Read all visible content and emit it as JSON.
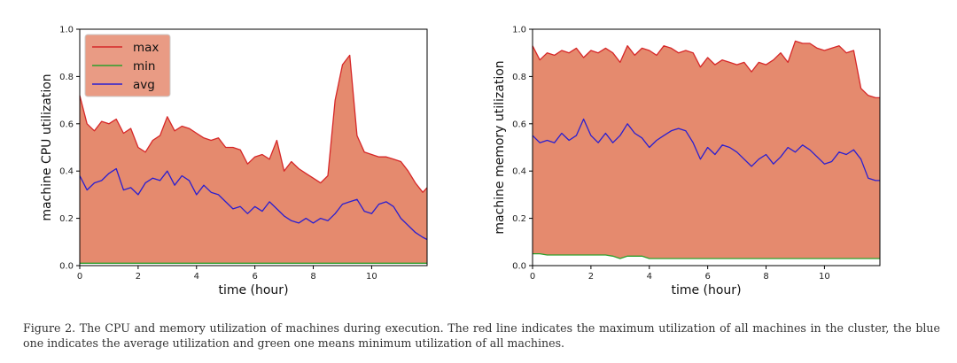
{
  "colors": {
    "max": "#d62728",
    "min": "#2ca02c",
    "avg": "#2a1fd0",
    "fill": "#e58a6e"
  },
  "caption": "Figure 2.   The CPU and memory utilization of machines during execution. The red line indicates the maximum utilization of all machines in the cluster, the blue one indicates the average utilization and green one means minimum utilization of all machines.",
  "chart_data": [
    {
      "type": "area",
      "title": "",
      "xlabel": "time (hour)",
      "ylabel": "machine CPU utilization",
      "xlim": [
        0,
        11.9
      ],
      "ylim": [
        0,
        1.0
      ],
      "xticks": [
        "0",
        "2",
        "4",
        "6",
        "8",
        "10"
      ],
      "yticks": [
        "0.0",
        "0.2",
        "0.4",
        "0.6",
        "0.8",
        "1.0"
      ],
      "legend": {
        "position": "top-left",
        "entries": [
          "max",
          "min",
          "avg"
        ]
      },
      "x": [
        0,
        0.25,
        0.5,
        0.75,
        1.0,
        1.25,
        1.5,
        1.75,
        2.0,
        2.25,
        2.5,
        2.75,
        3.0,
        3.25,
        3.5,
        3.75,
        4.0,
        4.25,
        4.5,
        4.75,
        5.0,
        5.25,
        5.5,
        5.75,
        6.0,
        6.25,
        6.5,
        6.75,
        7.0,
        7.25,
        7.5,
        7.75,
        8.0,
        8.25,
        8.5,
        8.75,
        9.0,
        9.25,
        9.5,
        9.75,
        10.0,
        10.25,
        10.5,
        10.75,
        11.0,
        11.25,
        11.5,
        11.75,
        11.9
      ],
      "series": [
        {
          "name": "max",
          "values": [
            0.72,
            0.6,
            0.57,
            0.61,
            0.6,
            0.62,
            0.56,
            0.58,
            0.5,
            0.48,
            0.53,
            0.55,
            0.63,
            0.57,
            0.59,
            0.58,
            0.56,
            0.54,
            0.53,
            0.54,
            0.5,
            0.5,
            0.49,
            0.43,
            0.46,
            0.47,
            0.45,
            0.53,
            0.4,
            0.44,
            0.41,
            0.39,
            0.37,
            0.35,
            0.38,
            0.7,
            0.85,
            0.89,
            0.55,
            0.48,
            0.47,
            0.46,
            0.46,
            0.45,
            0.44,
            0.4,
            0.35,
            0.31,
            0.33
          ]
        },
        {
          "name": "min",
          "values": [
            0.01,
            0.01,
            0.01,
            0.01,
            0.01,
            0.01,
            0.01,
            0.01,
            0.01,
            0.01,
            0.01,
            0.01,
            0.01,
            0.01,
            0.01,
            0.01,
            0.01,
            0.01,
            0.01,
            0.01,
            0.01,
            0.01,
            0.01,
            0.01,
            0.01,
            0.01,
            0.01,
            0.01,
            0.01,
            0.01,
            0.01,
            0.01,
            0.01,
            0.01,
            0.01,
            0.01,
            0.01,
            0.01,
            0.01,
            0.01,
            0.01,
            0.01,
            0.01,
            0.01,
            0.01,
            0.01,
            0.01,
            0.01,
            0.01
          ]
        },
        {
          "name": "avg",
          "values": [
            0.38,
            0.32,
            0.35,
            0.36,
            0.39,
            0.41,
            0.32,
            0.33,
            0.3,
            0.35,
            0.37,
            0.36,
            0.4,
            0.34,
            0.38,
            0.36,
            0.3,
            0.34,
            0.31,
            0.3,
            0.27,
            0.24,
            0.25,
            0.22,
            0.25,
            0.23,
            0.27,
            0.24,
            0.21,
            0.19,
            0.18,
            0.2,
            0.18,
            0.2,
            0.19,
            0.22,
            0.26,
            0.27,
            0.28,
            0.23,
            0.22,
            0.26,
            0.27,
            0.25,
            0.2,
            0.17,
            0.14,
            0.12,
            0.11
          ]
        }
      ]
    },
    {
      "type": "area",
      "title": "",
      "xlabel": "time (hour)",
      "ylabel": "machine memory utilization",
      "xlim": [
        0,
        11.9
      ],
      "ylim": [
        0,
        1.0
      ],
      "xticks": [
        "0",
        "2",
        "4",
        "6",
        "8",
        "10"
      ],
      "yticks": [
        "0.0",
        "0.2",
        "0.4",
        "0.6",
        "0.8",
        "1.0"
      ],
      "x": [
        0,
        0.25,
        0.5,
        0.75,
        1.0,
        1.25,
        1.5,
        1.75,
        2.0,
        2.25,
        2.5,
        2.75,
        3.0,
        3.25,
        3.5,
        3.75,
        4.0,
        4.25,
        4.5,
        4.75,
        5.0,
        5.25,
        5.5,
        5.75,
        6.0,
        6.25,
        6.5,
        6.75,
        7.0,
        7.25,
        7.5,
        7.75,
        8.0,
        8.25,
        8.5,
        8.75,
        9.0,
        9.25,
        9.5,
        9.75,
        10.0,
        10.25,
        10.5,
        10.75,
        11.0,
        11.25,
        11.5,
        11.75,
        11.9
      ],
      "series": [
        {
          "name": "max",
          "values": [
            0.93,
            0.87,
            0.9,
            0.89,
            0.91,
            0.9,
            0.92,
            0.88,
            0.91,
            0.9,
            0.92,
            0.9,
            0.86,
            0.93,
            0.89,
            0.92,
            0.91,
            0.89,
            0.93,
            0.92,
            0.9,
            0.91,
            0.9,
            0.84,
            0.88,
            0.85,
            0.87,
            0.86,
            0.85,
            0.86,
            0.82,
            0.86,
            0.85,
            0.87,
            0.9,
            0.86,
            0.95,
            0.94,
            0.94,
            0.92,
            0.91,
            0.92,
            0.93,
            0.9,
            0.91,
            0.75,
            0.72,
            0.71,
            0.71
          ]
        },
        {
          "name": "min",
          "values": [
            0.05,
            0.05,
            0.045,
            0.045,
            0.045,
            0.045,
            0.045,
            0.045,
            0.045,
            0.045,
            0.045,
            0.04,
            0.03,
            0.04,
            0.04,
            0.04,
            0.03,
            0.03,
            0.03,
            0.03,
            0.03,
            0.03,
            0.03,
            0.03,
            0.03,
            0.03,
            0.03,
            0.03,
            0.03,
            0.03,
            0.03,
            0.03,
            0.03,
            0.03,
            0.03,
            0.03,
            0.03,
            0.03,
            0.03,
            0.03,
            0.03,
            0.03,
            0.03,
            0.03,
            0.03,
            0.03,
            0.03,
            0.03,
            0.03
          ]
        },
        {
          "name": "avg",
          "values": [
            0.55,
            0.52,
            0.53,
            0.52,
            0.56,
            0.53,
            0.55,
            0.62,
            0.55,
            0.52,
            0.56,
            0.52,
            0.55,
            0.6,
            0.56,
            0.54,
            0.5,
            0.53,
            0.55,
            0.57,
            0.58,
            0.57,
            0.52,
            0.45,
            0.5,
            0.47,
            0.51,
            0.5,
            0.48,
            0.45,
            0.42,
            0.45,
            0.47,
            0.43,
            0.46,
            0.5,
            0.48,
            0.51,
            0.49,
            0.46,
            0.43,
            0.44,
            0.48,
            0.47,
            0.49,
            0.45,
            0.37,
            0.36,
            0.36
          ]
        }
      ]
    }
  ]
}
